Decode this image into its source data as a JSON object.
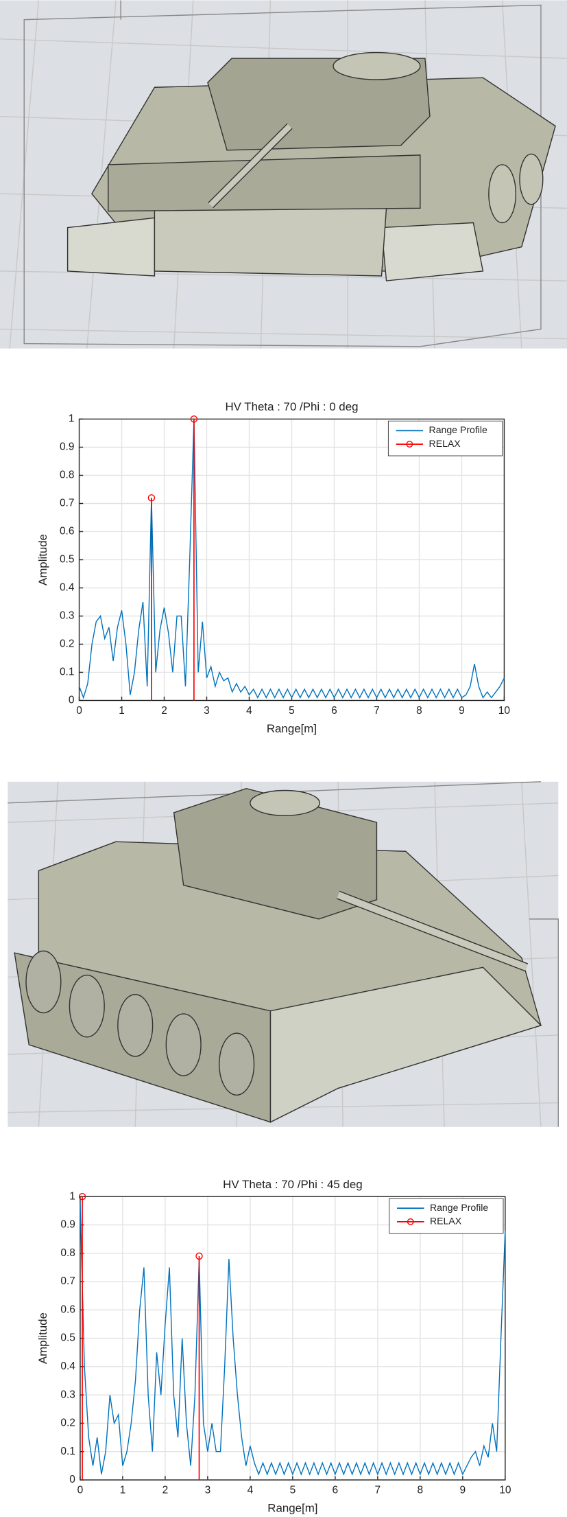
{
  "chart_data": [
    {
      "type": "line",
      "title": "HV Theta : 70 /Phi : 0 deg",
      "xlabel": "Range[m]",
      "ylabel": "Amplitude",
      "xlim": [
        0,
        10
      ],
      "ylim": [
        0,
        1
      ],
      "xticks": [
        0,
        1,
        2,
        3,
        4,
        5,
        6,
        7,
        8,
        9,
        10
      ],
      "yticks": [
        0,
        0.1,
        0.2,
        0.3,
        0.4,
        0.5,
        0.6,
        0.7,
        0.8,
        0.9,
        1
      ],
      "grid": true,
      "legend": "upper right",
      "series": [
        {
          "name": "Range Profile",
          "color": "#0072bd",
          "kind": "line",
          "x": [
            0,
            0.1,
            0.2,
            0.3,
            0.4,
            0.5,
            0.6,
            0.7,
            0.8,
            0.9,
            1,
            1.1,
            1.2,
            1.3,
            1.4,
            1.5,
            1.6,
            1.7,
            1.8,
            1.9,
            2,
            2.1,
            2.2,
            2.3,
            2.4,
            2.5,
            2.6,
            2.7,
            2.8,
            2.9,
            3,
            3.1,
            3.2,
            3.3,
            3.4,
            3.5,
            3.6,
            3.7,
            3.8,
            3.9,
            4,
            4.1,
            4.2,
            4.3,
            4.4,
            4.5,
            4.6,
            4.7,
            4.8,
            4.9,
            5,
            5.1,
            5.2,
            5.3,
            5.4,
            5.5,
            5.6,
            5.7,
            5.8,
            5.9,
            6,
            6.1,
            6.2,
            6.3,
            6.4,
            6.5,
            6.6,
            6.7,
            6.8,
            6.9,
            7,
            7.1,
            7.2,
            7.3,
            7.4,
            7.5,
            7.6,
            7.7,
            7.8,
            7.9,
            8,
            8.1,
            8.2,
            8.3,
            8.4,
            8.5,
            8.6,
            8.7,
            8.8,
            8.9,
            9,
            9.1,
            9.2,
            9.3,
            9.4,
            9.5,
            9.6,
            9.7,
            9.8,
            9.9,
            10
          ],
          "values": [
            0.05,
            0.01,
            0.06,
            0.2,
            0.28,
            0.3,
            0.22,
            0.26,
            0.14,
            0.26,
            0.32,
            0.2,
            0.02,
            0.1,
            0.25,
            0.35,
            0.05,
            0.72,
            0.1,
            0.25,
            0.33,
            0.24,
            0.1,
            0.3,
            0.3,
            0.05,
            0.5,
            1.0,
            0.1,
            0.28,
            0.08,
            0.12,
            0.05,
            0.1,
            0.07,
            0.08,
            0.03,
            0.06,
            0.03,
            0.05,
            0.02,
            0.04,
            0.01,
            0.04,
            0.01,
            0.04,
            0.01,
            0.04,
            0.01,
            0.04,
            0.01,
            0.04,
            0.01,
            0.04,
            0.01,
            0.04,
            0.01,
            0.04,
            0.01,
            0.04,
            0.01,
            0.04,
            0.01,
            0.04,
            0.01,
            0.04,
            0.01,
            0.04,
            0.01,
            0.04,
            0.01,
            0.04,
            0.01,
            0.04,
            0.01,
            0.04,
            0.01,
            0.04,
            0.01,
            0.04,
            0.01,
            0.04,
            0.01,
            0.04,
            0.01,
            0.04,
            0.01,
            0.04,
            0.01,
            0.04,
            0.01,
            0.02,
            0.05,
            0.13,
            0.05,
            0.01,
            0.03,
            0.01,
            0.03,
            0.05,
            0.08
          ]
        },
        {
          "name": "RELAX",
          "color": "#ff0000",
          "kind": "stem",
          "x": [
            1.7,
            2.7
          ],
          "values": [
            0.72,
            1.0
          ]
        }
      ]
    },
    {
      "type": "line",
      "title": "HV Theta : 70 /Phi : 45 deg",
      "xlabel": "Range[m]",
      "ylabel": "Amplitude",
      "xlim": [
        0,
        10
      ],
      "ylim": [
        0,
        1
      ],
      "xticks": [
        0,
        1,
        2,
        3,
        4,
        5,
        6,
        7,
        8,
        9,
        10
      ],
      "yticks": [
        0,
        0.1,
        0.2,
        0.3,
        0.4,
        0.5,
        0.6,
        0.7,
        0.8,
        0.9,
        1
      ],
      "grid": true,
      "legend": "upper right",
      "series": [
        {
          "name": "Range Profile",
          "color": "#0072bd",
          "kind": "line",
          "x": [
            0,
            0.1,
            0.2,
            0.3,
            0.4,
            0.5,
            0.6,
            0.7,
            0.8,
            0.9,
            1,
            1.1,
            1.2,
            1.3,
            1.4,
            1.5,
            1.6,
            1.7,
            1.8,
            1.9,
            2,
            2.1,
            2.2,
            2.3,
            2.4,
            2.5,
            2.6,
            2.7,
            2.8,
            2.9,
            3,
            3.1,
            3.2,
            3.3,
            3.4,
            3.5,
            3.6,
            3.7,
            3.8,
            3.9,
            4,
            4.1,
            4.2,
            4.3,
            4.4,
            4.5,
            4.6,
            4.7,
            4.8,
            4.9,
            5,
            5.1,
            5.2,
            5.3,
            5.4,
            5.5,
            5.6,
            5.7,
            5.8,
            5.9,
            6,
            6.1,
            6.2,
            6.3,
            6.4,
            6.5,
            6.6,
            6.7,
            6.8,
            6.9,
            7,
            7.1,
            7.2,
            7.3,
            7.4,
            7.5,
            7.6,
            7.7,
            7.8,
            7.9,
            8,
            8.1,
            8.2,
            8.3,
            8.4,
            8.5,
            8.6,
            8.7,
            8.8,
            8.9,
            9,
            9.1,
            9.2,
            9.3,
            9.4,
            9.5,
            9.6,
            9.7,
            9.8,
            9.9,
            10
          ],
          "values": [
            0.98,
            0.4,
            0.15,
            0.05,
            0.15,
            0.02,
            0.1,
            0.3,
            0.2,
            0.23,
            0.05,
            0.1,
            0.2,
            0.35,
            0.6,
            0.75,
            0.3,
            0.1,
            0.45,
            0.3,
            0.55,
            0.75,
            0.3,
            0.15,
            0.5,
            0.2,
            0.05,
            0.3,
            0.78,
            0.2,
            0.1,
            0.2,
            0.1,
            0.1,
            0.4,
            0.78,
            0.5,
            0.3,
            0.15,
            0.05,
            0.12,
            0.06,
            0.02,
            0.06,
            0.02,
            0.06,
            0.02,
            0.06,
            0.02,
            0.06,
            0.02,
            0.06,
            0.02,
            0.06,
            0.02,
            0.06,
            0.02,
            0.06,
            0.02,
            0.06,
            0.02,
            0.06,
            0.02,
            0.06,
            0.02,
            0.06,
            0.02,
            0.06,
            0.02,
            0.06,
            0.02,
            0.06,
            0.02,
            0.06,
            0.02,
            0.06,
            0.02,
            0.06,
            0.02,
            0.06,
            0.02,
            0.06,
            0.02,
            0.06,
            0.02,
            0.06,
            0.02,
            0.06,
            0.02,
            0.06,
            0.02,
            0.05,
            0.08,
            0.1,
            0.05,
            0.12,
            0.08,
            0.2,
            0.1,
            0.5,
            0.88
          ]
        },
        {
          "name": "RELAX",
          "color": "#ff0000",
          "kind": "stem",
          "x": [
            0.05,
            2.8
          ],
          "values": [
            1.0,
            0.79
          ]
        }
      ]
    }
  ]
}
